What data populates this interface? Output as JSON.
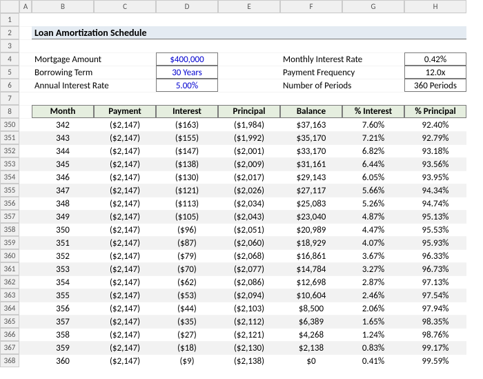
{
  "columns": [
    "A",
    "B",
    "C",
    "D",
    "E",
    "F",
    "G",
    "H"
  ],
  "section_title": "Loan Amortization Schedule",
  "inputs": {
    "mortgage_label": "Mortgage Amount",
    "mortgage_value": "$400,000",
    "term_label": "Borrowing Term",
    "term_value": "30 Years",
    "apr_label": "Annual Interest Rate",
    "apr_value": "5.00%",
    "mrate_label": "Monthly Interest Rate",
    "mrate_value": "0.42%",
    "freq_label": "Payment Frequency",
    "freq_value": "12.0x",
    "periods_label": "Number of Periods",
    "periods_value": "360 Periods"
  },
  "table": {
    "header_row_label": "8",
    "headers": [
      "Month",
      "Payment",
      "Interest",
      "Principal",
      "Balance",
      "% Interest",
      "% Principal"
    ],
    "rows": [
      {
        "rh": "350",
        "m": "342",
        "p": "($2,147)",
        "i": "($163)",
        "pr": "($1,984)",
        "b": "$37,163",
        "pi": "7.60%",
        "pp": "92.40%"
      },
      {
        "rh": "351",
        "m": "343",
        "p": "($2,147)",
        "i": "($155)",
        "pr": "($1,992)",
        "b": "$35,170",
        "pi": "7.21%",
        "pp": "92.79%"
      },
      {
        "rh": "352",
        "m": "344",
        "p": "($2,147)",
        "i": "($147)",
        "pr": "($2,001)",
        "b": "$33,170",
        "pi": "6.82%",
        "pp": "93.18%"
      },
      {
        "rh": "353",
        "m": "345",
        "p": "($2,147)",
        "i": "($138)",
        "pr": "($2,009)",
        "b": "$31,161",
        "pi": "6.44%",
        "pp": "93.56%"
      },
      {
        "rh": "354",
        "m": "346",
        "p": "($2,147)",
        "i": "($130)",
        "pr": "($2,017)",
        "b": "$29,143",
        "pi": "6.05%",
        "pp": "93.95%"
      },
      {
        "rh": "355",
        "m": "347",
        "p": "($2,147)",
        "i": "($121)",
        "pr": "($2,026)",
        "b": "$27,117",
        "pi": "5.66%",
        "pp": "94.34%"
      },
      {
        "rh": "356",
        "m": "348",
        "p": "($2,147)",
        "i": "($113)",
        "pr": "($2,034)",
        "b": "$25,083",
        "pi": "5.26%",
        "pp": "94.74%"
      },
      {
        "rh": "357",
        "m": "349",
        "p": "($2,147)",
        "i": "($105)",
        "pr": "($2,043)",
        "b": "$23,040",
        "pi": "4.87%",
        "pp": "95.13%"
      },
      {
        "rh": "358",
        "m": "350",
        "p": "($2,147)",
        "i": "($96)",
        "pr": "($2,051)",
        "b": "$20,989",
        "pi": "4.47%",
        "pp": "95.53%"
      },
      {
        "rh": "359",
        "m": "351",
        "p": "($2,147)",
        "i": "($87)",
        "pr": "($2,060)",
        "b": "$18,929",
        "pi": "4.07%",
        "pp": "95.93%"
      },
      {
        "rh": "360",
        "m": "352",
        "p": "($2,147)",
        "i": "($79)",
        "pr": "($2,068)",
        "b": "$16,861",
        "pi": "3.67%",
        "pp": "96.33%"
      },
      {
        "rh": "361",
        "m": "353",
        "p": "($2,147)",
        "i": "($70)",
        "pr": "($2,077)",
        "b": "$14,784",
        "pi": "3.27%",
        "pp": "96.73%"
      },
      {
        "rh": "362",
        "m": "354",
        "p": "($2,147)",
        "i": "($62)",
        "pr": "($2,086)",
        "b": "$12,698",
        "pi": "2.87%",
        "pp": "97.13%"
      },
      {
        "rh": "363",
        "m": "355",
        "p": "($2,147)",
        "i": "($53)",
        "pr": "($2,094)",
        "b": "$10,604",
        "pi": "2.46%",
        "pp": "97.54%"
      },
      {
        "rh": "364",
        "m": "356",
        "p": "($2,147)",
        "i": "($44)",
        "pr": "($2,103)",
        "b": "$8,500",
        "pi": "2.06%",
        "pp": "97.94%"
      },
      {
        "rh": "365",
        "m": "357",
        "p": "($2,147)",
        "i": "($35)",
        "pr": "($2,112)",
        "b": "$6,389",
        "pi": "1.65%",
        "pp": "98.35%"
      },
      {
        "rh": "366",
        "m": "358",
        "p": "($2,147)",
        "i": "($27)",
        "pr": "($2,121)",
        "b": "$4,268",
        "pi": "1.24%",
        "pp": "98.76%"
      },
      {
        "rh": "367",
        "m": "359",
        "p": "($2,147)",
        "i": "($18)",
        "pr": "($2,130)",
        "b": "$2,138",
        "pi": "0.83%",
        "pp": "99.17%"
      },
      {
        "rh": "368",
        "m": "360",
        "p": "($2,147)",
        "i": "($9)",
        "pr": "($2,138)",
        "b": "$0",
        "pi": "0.41%",
        "pp": "99.59%"
      }
    ]
  },
  "top_row_labels": [
    "1",
    "2",
    "3",
    "4",
    "5",
    "6",
    "7"
  ],
  "colors": {
    "title_bg": "#e4ebf2",
    "header_bg": "#e5eedf",
    "stripe_bg": "#f2f2f2",
    "blue_text": "#0000d0",
    "grid_border": "#7a7a7a"
  }
}
